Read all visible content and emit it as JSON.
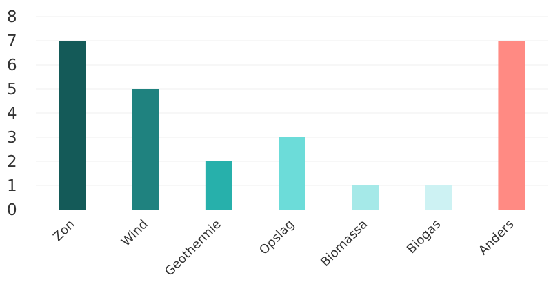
{
  "chart_data": {
    "type": "bar",
    "categories": [
      "Zon",
      "Wind",
      "Geothermie",
      "Opslag",
      "Biomassa",
      "Biogas",
      "Anders"
    ],
    "values": [
      7,
      5,
      2,
      3,
      1,
      1,
      7
    ],
    "colors": [
      "#145a58",
      "#1f827f",
      "#27b0ab",
      "#6cdcd9",
      "#a5e9e8",
      "#cdf2f3",
      "#ff8a83"
    ],
    "ylim": [
      0,
      8
    ],
    "yticks": [
      0,
      1,
      2,
      3,
      4,
      5,
      6,
      7,
      8
    ],
    "grid": true,
    "title": "",
    "xlabel": "",
    "ylabel": ""
  }
}
